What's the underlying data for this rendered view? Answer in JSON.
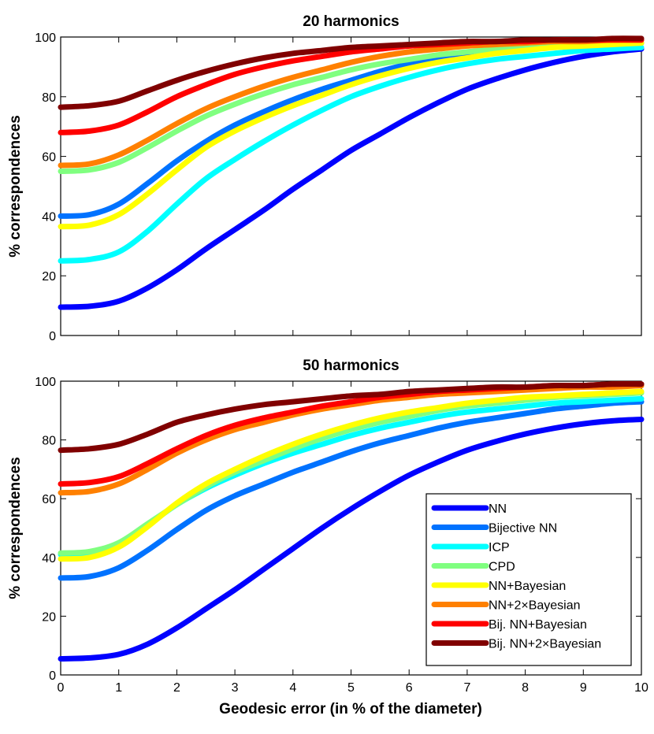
{
  "figure": {
    "xlabel": "Geodesic error (in % of the diameter)",
    "legend_location": "bottom-right"
  },
  "chart_data": [
    {
      "type": "line",
      "title": "20 harmonics",
      "xlabel": "",
      "ylabel": "% correspondences",
      "xlim": [
        0,
        10
      ],
      "ylim": [
        0,
        100
      ],
      "x_ticks": [
        0,
        1,
        2,
        3,
        4,
        5,
        6,
        7,
        8,
        9,
        10
      ],
      "y_ticks": [
        0,
        20,
        40,
        60,
        80,
        100
      ],
      "show_x_tick_labels": false,
      "legend": false,
      "series": [
        {
          "name": "NN",
          "color": "#0000ff",
          "x": [
            0,
            0.5,
            1,
            1.5,
            2,
            2.5,
            3,
            3.5,
            4,
            4.5,
            5,
            5.5,
            6,
            6.5,
            7,
            7.5,
            8,
            8.5,
            9,
            9.5,
            10
          ],
          "values": [
            9.5,
            9.8,
            11.5,
            16,
            22,
            29,
            35.5,
            42,
            49,
            55.5,
            62,
            67.5,
            73,
            78,
            82.5,
            86,
            89,
            91.5,
            93.5,
            95,
            96
          ]
        },
        {
          "name": "Bijective NN",
          "color": "#0072ff",
          "x": [
            0,
            0.5,
            1,
            1.5,
            2,
            2.5,
            3,
            3.5,
            4,
            4.5,
            5,
            5.5,
            6,
            6.5,
            7,
            7.5,
            8,
            8.5,
            9,
            9.5,
            10
          ],
          "values": [
            40,
            40.5,
            44,
            51,
            58.5,
            65,
            70.5,
            75,
            79,
            82.5,
            85.5,
            88.5,
            91,
            93,
            94.5,
            95.5,
            96.5,
            97,
            97.5,
            98,
            98
          ]
        },
        {
          "name": "ICP",
          "color": "#00ffff",
          "x": [
            0,
            0.5,
            1,
            1.5,
            2,
            2.5,
            3,
            3.5,
            4,
            4.5,
            5,
            5.5,
            6,
            6.5,
            7,
            7.5,
            8,
            8.5,
            9,
            9.5,
            10
          ],
          "values": [
            25,
            25.5,
            28,
            35,
            44,
            52.5,
            59,
            65,
            70.5,
            75.5,
            80,
            83.5,
            86.5,
            89,
            91,
            92.5,
            93.5,
            94.5,
            95.5,
            96,
            96.5
          ]
        },
        {
          "name": "CPD",
          "color": "#80ff80",
          "x": [
            0,
            0.5,
            1,
            1.5,
            2,
            2.5,
            3,
            3.5,
            4,
            4.5,
            5,
            5.5,
            6,
            6.5,
            7,
            7.5,
            8,
            8.5,
            9,
            9.5,
            10
          ],
          "values": [
            55,
            55.5,
            58,
            63,
            68.5,
            73.5,
            77.5,
            81,
            84,
            86.5,
            89,
            91,
            92.5,
            94,
            95,
            96,
            96.5,
            97,
            97.5,
            98,
            98
          ]
        },
        {
          "name": "NN+Bayesian",
          "color": "#ffff00",
          "x": [
            0,
            0.5,
            1,
            1.5,
            2,
            2.5,
            3,
            3.5,
            4,
            4.5,
            5,
            5.5,
            6,
            6.5,
            7,
            7.5,
            8,
            8.5,
            9,
            9.5,
            10
          ],
          "values": [
            36.5,
            37,
            40.5,
            47.5,
            55.5,
            63,
            68.5,
            73,
            77,
            80.5,
            84,
            87,
            89.5,
            91.5,
            93,
            94.5,
            95.5,
            96.5,
            97,
            97.5,
            98
          ]
        },
        {
          "name": "NN+2×Bayesian",
          "color": "#ff8000",
          "x": [
            0,
            0.5,
            1,
            1.5,
            2,
            2.5,
            3,
            3.5,
            4,
            4.5,
            5,
            5.5,
            6,
            6.5,
            7,
            7.5,
            8,
            8.5,
            9,
            9.5,
            10
          ],
          "values": [
            57,
            57.5,
            60.5,
            65.5,
            71,
            76,
            80,
            83.5,
            86.5,
            89,
            91.5,
            93.5,
            95,
            96,
            97,
            97.5,
            98,
            98.5,
            98.5,
            99,
            99
          ]
        },
        {
          "name": "Bij. NN+Bayesian",
          "color": "#ff0000",
          "x": [
            0,
            0.5,
            1,
            1.5,
            2,
            2.5,
            3,
            3.5,
            4,
            4.5,
            5,
            5.5,
            6,
            6.5,
            7,
            7.5,
            8,
            8.5,
            9,
            9.5,
            10
          ],
          "values": [
            68,
            68.5,
            70.5,
            75,
            80,
            84,
            87.5,
            90,
            92,
            93.5,
            95,
            96,
            97,
            97.5,
            98,
            98.5,
            98.5,
            99,
            99,
            99,
            99
          ]
        },
        {
          "name": "Bij. NN+2×Bayesian",
          "color": "#800000",
          "x": [
            0,
            0.5,
            1,
            1.5,
            2,
            2.5,
            3,
            3.5,
            4,
            4.5,
            5,
            5.5,
            6,
            6.5,
            7,
            7.5,
            8,
            8.5,
            9,
            9.5,
            10
          ],
          "values": [
            76.5,
            77,
            78.5,
            82,
            85.5,
            88.5,
            91,
            93,
            94.5,
            95.5,
            96.5,
            97,
            97.5,
            98,
            98.5,
            98.5,
            99,
            99,
            99,
            99.5,
            99.5
          ]
        }
      ]
    },
    {
      "type": "line",
      "title": "50 harmonics",
      "xlabel": "Geodesic error (in % of the diameter)",
      "ylabel": "% correspondences",
      "xlim": [
        0,
        10
      ],
      "ylim": [
        0,
        100
      ],
      "x_ticks": [
        0,
        1,
        2,
        3,
        4,
        5,
        6,
        7,
        8,
        9,
        10
      ],
      "y_ticks": [
        0,
        20,
        40,
        60,
        80,
        100
      ],
      "show_x_tick_labels": true,
      "legend": true,
      "series": [
        {
          "name": "NN",
          "color": "#0000ff",
          "x": [
            0,
            0.5,
            1,
            1.5,
            2,
            2.5,
            3,
            3.5,
            4,
            4.5,
            5,
            5.5,
            6,
            6.5,
            7,
            7.5,
            8,
            8.5,
            9,
            9.5,
            10
          ],
          "values": [
            5.5,
            5.8,
            7,
            10.5,
            16,
            22.5,
            29,
            36,
            43,
            50,
            56.5,
            62.5,
            68,
            72.5,
            76.5,
            79.5,
            82,
            84,
            85.5,
            86.5,
            87
          ]
        },
        {
          "name": "Bijective NN",
          "color": "#0072ff",
          "x": [
            0,
            0.5,
            1,
            1.5,
            2,
            2.5,
            3,
            3.5,
            4,
            4.5,
            5,
            5.5,
            6,
            6.5,
            7,
            7.5,
            8,
            8.5,
            9,
            9.5,
            10
          ],
          "values": [
            33,
            33.5,
            36.5,
            42.5,
            49.5,
            56,
            61,
            65,
            69,
            72.5,
            76,
            79,
            81.5,
            84,
            86,
            87.5,
            89,
            90.5,
            91.5,
            92.5,
            93
          ]
        },
        {
          "name": "ICP",
          "color": "#00ffff",
          "x": [
            0,
            0.5,
            1,
            1.5,
            2,
            2.5,
            3,
            3.5,
            4,
            4.5,
            5,
            5.5,
            6,
            6.5,
            7,
            7.5,
            8,
            8.5,
            9,
            9.5,
            10
          ],
          "values": [
            41,
            41.5,
            44.5,
            51,
            58,
            63.5,
            68,
            72,
            75.5,
            78.5,
            81.5,
            84,
            86,
            88,
            89.5,
            90.5,
            91.5,
            92.5,
            93,
            93.5,
            94
          ]
        },
        {
          "name": "CPD",
          "color": "#80ff80",
          "x": [
            0,
            0.5,
            1,
            1.5,
            2,
            2.5,
            3,
            3.5,
            4,
            4.5,
            5,
            5.5,
            6,
            6.5,
            7,
            7.5,
            8,
            8.5,
            9,
            9.5,
            10
          ],
          "values": [
            41.5,
            42,
            45,
            51.5,
            58,
            64,
            69,
            73,
            77,
            80.5,
            83.5,
            86,
            88,
            90,
            91.5,
            92.5,
            93.5,
            94.5,
            95,
            95.5,
            96
          ]
        },
        {
          "name": "NN+Bayesian",
          "color": "#ffff00",
          "x": [
            0,
            0.5,
            1,
            1.5,
            2,
            2.5,
            3,
            3.5,
            4,
            4.5,
            5,
            5.5,
            6,
            6.5,
            7,
            7.5,
            8,
            8.5,
            9,
            9.5,
            10
          ],
          "values": [
            39.5,
            40,
            43.5,
            50.5,
            58.5,
            65,
            70,
            74.5,
            78.5,
            82,
            85,
            87.5,
            89.5,
            91,
            92.5,
            93.5,
            94.5,
            95,
            95.5,
            96,
            96.5
          ]
        },
        {
          "name": "NN+2×Bayesian",
          "color": "#ff8000",
          "x": [
            0,
            0.5,
            1,
            1.5,
            2,
            2.5,
            3,
            3.5,
            4,
            4.5,
            5,
            5.5,
            6,
            6.5,
            7,
            7.5,
            8,
            8.5,
            9,
            9.5,
            10
          ],
          "values": [
            62,
            62.5,
            65,
            70,
            75.5,
            80,
            83.5,
            86,
            88.5,
            90.5,
            92,
            93.5,
            94.5,
            95.5,
            96,
            96.5,
            97,
            97.5,
            98,
            98,
            98.5
          ]
        },
        {
          "name": "Bij. NN+Bayesian",
          "color": "#ff0000",
          "x": [
            0,
            0.5,
            1,
            1.5,
            2,
            2.5,
            3,
            3.5,
            4,
            4.5,
            5,
            5.5,
            6,
            6.5,
            7,
            7.5,
            8,
            8.5,
            9,
            9.5,
            10
          ],
          "values": [
            65,
            65.5,
            67.5,
            72,
            77,
            81.5,
            85,
            87.5,
            89.5,
            91.5,
            93,
            94.5,
            95.5,
            96.5,
            97,
            97.5,
            98,
            98.5,
            98.5,
            99,
            99
          ]
        },
        {
          "name": "Bij. NN+2×Bayesian",
          "color": "#800000",
          "x": [
            0,
            0.5,
            1,
            1.5,
            2,
            2.5,
            3,
            3.5,
            4,
            4.5,
            5,
            5.5,
            6,
            6.5,
            7,
            7.5,
            8,
            8.5,
            9,
            9.5,
            10
          ],
          "values": [
            76.5,
            77,
            78.5,
            82,
            86,
            88.5,
            90.5,
            92,
            93,
            94,
            95,
            95.5,
            96.5,
            97,
            97.5,
            98,
            98,
            98.5,
            98.5,
            99,
            99
          ]
        }
      ]
    }
  ]
}
